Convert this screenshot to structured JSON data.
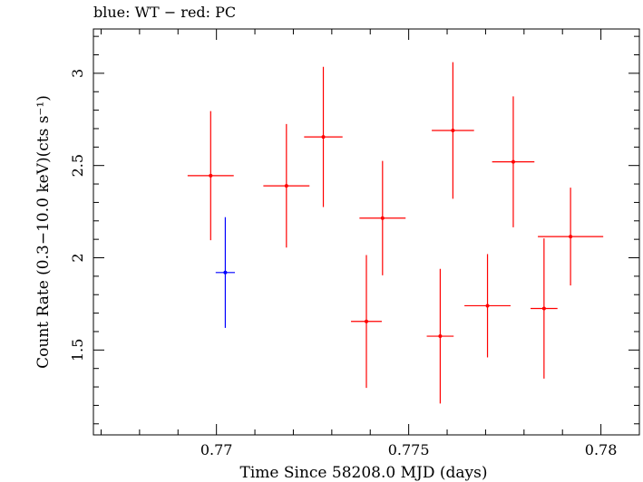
{
  "chart_data": {
    "type": "scatter",
    "title": "blue: WT − red: PC",
    "xlabel": "Time Since 58208.0 MJD (days)",
    "ylabel": "Count Rate (0.3−10.0 keV)(cts s⁻¹)",
    "xlim": [
      0.7668,
      0.781
    ],
    "ylim": [
      1.04,
      3.24
    ],
    "x_ticks": [
      0.77,
      0.775,
      0.78
    ],
    "x_tick_labels": [
      "0.77",
      "0.775",
      "0.78"
    ],
    "y_ticks": [
      1.5,
      2,
      2.5,
      3
    ],
    "y_tick_labels": [
      "1.5",
      "2",
      "2.5",
      "3"
    ],
    "grid": false,
    "series": [
      {
        "color": "#0000ff",
        "points": [
          {
            "x": 0.77023,
            "xerr": 0.00025,
            "y": 1.92,
            "yerr": 0.3
          }
        ]
      },
      {
        "color": "#ff0000",
        "points": [
          {
            "x": 0.76985,
            "xerr": 0.0006,
            "y": 2.445,
            "yerr": 0.35
          },
          {
            "x": 0.77182,
            "xerr": 0.0006,
            "y": 2.39,
            "yerr": 0.335
          },
          {
            "x": 0.77278,
            "xerr": 0.0005,
            "y": 2.655,
            "yerr": 0.38
          },
          {
            "x": 0.7739,
            "xerr": 0.0004,
            "y": 1.655,
            "yerr": 0.36
          },
          {
            "x": 0.77432,
            "xerr": 0.0006,
            "y": 2.215,
            "yerr": 0.31
          },
          {
            "x": 0.77582,
            "xerr": 0.00035,
            "y": 1.575,
            "yerr": 0.365
          },
          {
            "x": 0.77615,
            "xerr": 0.00055,
            "y": 2.69,
            "yerr": 0.37
          },
          {
            "x": 0.77705,
            "xerr": 0.0006,
            "y": 1.74,
            "yerr": 0.28
          },
          {
            "x": 0.77772,
            "xerr": 0.00055,
            "y": 2.52,
            "yerr": 0.355
          },
          {
            "x": 0.77852,
            "xerr": 0.00035,
            "y": 1.725,
            "yerr": 0.38
          },
          {
            "x": 0.77921,
            "xerr": 0.00085,
            "y": 2.115,
            "yerr": 0.265
          }
        ]
      }
    ]
  }
}
